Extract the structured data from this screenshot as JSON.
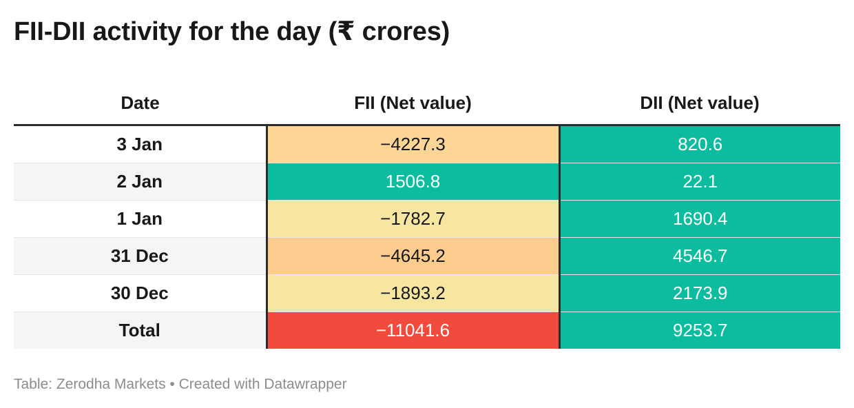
{
  "title": "FII-DII activity for the day (₹ crores)",
  "table": {
    "headers": [
      "Date",
      "FII (Net value)",
      "DII (Net value)"
    ],
    "rows": [
      {
        "date": "3 Jan",
        "fii": "−4227.3",
        "dii": "820.6"
      },
      {
        "date": "2 Jan",
        "fii": "1506.8",
        "dii": "22.1"
      },
      {
        "date": "1 Jan",
        "fii": "−1782.7",
        "dii": "1690.4"
      },
      {
        "date": "31 Dec",
        "fii": "−4645.2",
        "dii": "4546.7"
      },
      {
        "date": "30 Dec",
        "fii": "−1893.2",
        "dii": "2173.9"
      },
      {
        "date": "Total",
        "fii": "−11041.6",
        "dii": "9253.7"
      }
    ]
  },
  "cell_colors": {
    "fii": [
      "#fdd696",
      "#0bbd9e",
      "#f7e69f",
      "#fccb8e",
      "#f7e69f",
      "#f04b3c"
    ],
    "dii": [
      "#0bbd9e",
      "#0bbd9e",
      "#0bbd9e",
      "#0bbd9e",
      "#0bbd9e",
      "#0bbd9e"
    ],
    "fii_light_text": [
      false,
      true,
      false,
      false,
      false,
      true
    ],
    "dii_light_text": [
      true,
      true,
      true,
      true,
      true,
      true
    ]
  },
  "footer": "Table: Zerodha Markets • Created with Datawrapper",
  "chart_data": {
    "type": "table",
    "title": "FII-DII activity for the day (₹ crores)",
    "columns": [
      "Date",
      "FII (Net value)",
      "DII (Net value)"
    ],
    "categories": [
      "3 Jan",
      "2 Jan",
      "1 Jan",
      "31 Dec",
      "30 Dec",
      "Total"
    ],
    "series": [
      {
        "name": "FII (Net value)",
        "values": [
          -4227.3,
          1506.8,
          -1782.7,
          -4645.2,
          -1893.2,
          -11041.6
        ]
      },
      {
        "name": "DII (Net value)",
        "values": [
          820.6,
          22.1,
          1690.4,
          4546.7,
          2173.9,
          9253.7
        ]
      }
    ]
  }
}
